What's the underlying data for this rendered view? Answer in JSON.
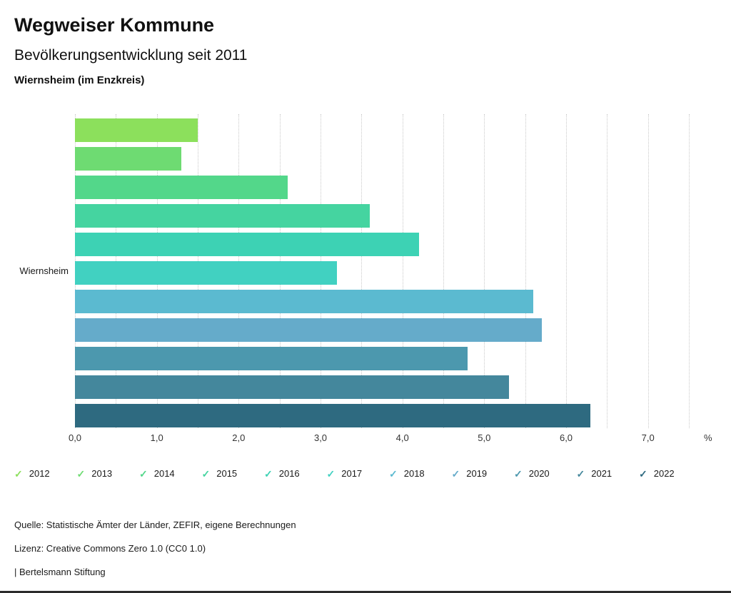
{
  "header": {
    "title": "Wegweiser Kommune",
    "subtitle": "Bevölkerungsentwicklung seit 2011",
    "region": "Wiernsheim (im Enzkreis)"
  },
  "chart_data": {
    "type": "bar",
    "orientation": "horizontal",
    "title": "Bevölkerungsentwicklung seit 2011",
    "category_label": "Wiernsheim",
    "xlabel": "%",
    "xlim": [
      0,
      7.5
    ],
    "grid": true,
    "grid_step": 0.5,
    "tick_step": 1,
    "x_ticks": [
      "0,0",
      "1,0",
      "2,0",
      "3,0",
      "4,0",
      "5,0",
      "6,0",
      "7,0"
    ],
    "legend_position": "bottom",
    "series": [
      {
        "name": "2012",
        "value": 1.5,
        "color": "#8ce05c"
      },
      {
        "name": "2013",
        "value": 1.3,
        "color": "#6edb72"
      },
      {
        "name": "2014",
        "value": 2.6,
        "color": "#53d78a"
      },
      {
        "name": "2015",
        "value": 3.6,
        "color": "#45d4a0"
      },
      {
        "name": "2016",
        "value": 4.2,
        "color": "#3dd2b4"
      },
      {
        "name": "2017",
        "value": 3.2,
        "color": "#41d1c1"
      },
      {
        "name": "2018",
        "value": 5.6,
        "color": "#5bbad0"
      },
      {
        "name": "2019",
        "value": 5.7,
        "color": "#65abca"
      },
      {
        "name": "2020",
        "value": 4.8,
        "color": "#4c98ae"
      },
      {
        "name": "2021",
        "value": 5.3,
        "color": "#44879c"
      },
      {
        "name": "2022",
        "value": 6.3,
        "color": "#2e6a80"
      }
    ]
  },
  "legend": {
    "check_glyph": "✓"
  },
  "footer": {
    "source": "Quelle: Statistische Ämter der Länder, ZEFIR, eigene Berechnungen",
    "license": "Lizenz: Creative Commons Zero 1.0 (CC0 1.0)",
    "attribution": "| Bertelsmann Stiftung"
  }
}
